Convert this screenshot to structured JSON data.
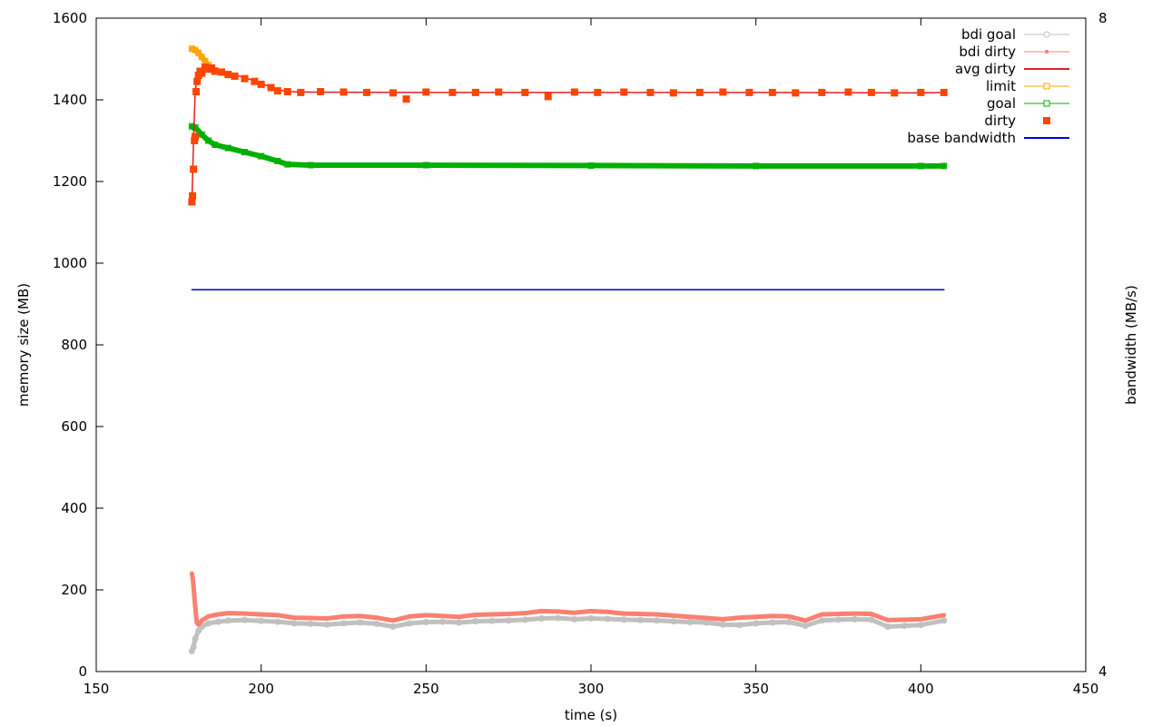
{
  "chart_data": {
    "type": "line",
    "title": "",
    "xlabel": "time (s)",
    "ylabel": "memory size (MB)",
    "y2label": "bandwidth (MB/s)",
    "xlim": [
      150,
      450
    ],
    "ylim": [
      0,
      1600
    ],
    "y2lim": [
      4,
      8
    ],
    "x_ticks": [
      "150",
      "200",
      "250",
      "300",
      "350",
      "400",
      "450"
    ],
    "y_ticks": [
      "0",
      "200",
      "400",
      "600",
      "800",
      "1000",
      "1200",
      "1400",
      "1600"
    ],
    "y2_ticks": [
      "4",
      "8"
    ],
    "grid": false,
    "legend_position": "top-right",
    "series": [
      {
        "name": "bdi goal",
        "color": "#c0c0c0",
        "style": "line-circle",
        "axis": "y1",
        "x": [
          179,
          179.5,
          180,
          181,
          182,
          184,
          187,
          190,
          195,
          200,
          205,
          210,
          215,
          220,
          225,
          230,
          235,
          240,
          245,
          250,
          255,
          260,
          265,
          270,
          275,
          280,
          285,
          290,
          295,
          300,
          305,
          310,
          315,
          320,
          325,
          330,
          335,
          340,
          345,
          350,
          355,
          360,
          365,
          370,
          375,
          380,
          385,
          390,
          395,
          400,
          407
        ],
        "y": [
          50,
          60,
          80,
          100,
          110,
          118,
          122,
          125,
          126,
          124,
          122,
          118,
          117,
          115,
          118,
          120,
          117,
          110,
          118,
          121,
          122,
          120,
          123,
          124,
          125,
          127,
          130,
          131,
          128,
          130,
          129,
          127,
          126,
          125,
          123,
          121,
          120,
          115,
          114,
          118,
          120,
          121,
          112,
          125,
          127,
          128,
          127,
          110,
          112,
          114,
          125
        ]
      },
      {
        "name": "bdi dirty",
        "color": "#fa8072",
        "style": "line-point",
        "axis": "y1",
        "x": [
          179,
          179.3,
          179.6,
          180,
          180.5,
          181,
          182,
          184,
          187,
          190,
          195,
          200,
          205,
          210,
          215,
          220,
          225,
          230,
          235,
          240,
          245,
          250,
          255,
          260,
          265,
          270,
          275,
          280,
          285,
          290,
          295,
          300,
          305,
          310,
          315,
          320,
          325,
          330,
          335,
          340,
          345,
          350,
          355,
          360,
          365,
          370,
          375,
          380,
          385,
          390,
          395,
          400,
          407
        ],
        "y": [
          240,
          225,
          200,
          160,
          120,
          115,
          125,
          135,
          140,
          143,
          142,
          140,
          138,
          132,
          131,
          130,
          135,
          136,
          132,
          125,
          135,
          138,
          136,
          134,
          139,
          140,
          141,
          143,
          148,
          147,
          144,
          148,
          146,
          142,
          141,
          140,
          137,
          134,
          131,
          128,
          132,
          134,
          136,
          135,
          125,
          140,
          141,
          142,
          141,
          126,
          127,
          128,
          138
        ]
      },
      {
        "name": "avg dirty",
        "color": "#e02020",
        "style": "line",
        "axis": "y1",
        "x": [
          179,
          179.5,
          180,
          180.5,
          181,
          182,
          183,
          185,
          190,
          195,
          200,
          205,
          208,
          215,
          250,
          300,
          350,
          400,
          407
        ],
        "y": [
          1150,
          1300,
          1420,
          1450,
          1465,
          1472,
          1475,
          1474,
          1465,
          1455,
          1440,
          1425,
          1420,
          1419,
          1418,
          1418,
          1418,
          1417,
          1418
        ]
      },
      {
        "name": "limit",
        "color": "#ffa500",
        "style": "line-square",
        "axis": "y1",
        "x": [
          179,
          180,
          181,
          182,
          183,
          184,
          185,
          186
        ],
        "y": [
          1525,
          1522,
          1515,
          1505,
          1495,
          1485,
          1478,
          1472
        ]
      },
      {
        "name": "goal",
        "color": "#00b000",
        "style": "line-square",
        "axis": "y1",
        "x": [
          179,
          180,
          182,
          184,
          186,
          190,
          195,
          200,
          205,
          208,
          215,
          250,
          300,
          350,
          400,
          407
        ],
        "y": [
          1335,
          1332,
          1315,
          1300,
          1290,
          1282,
          1272,
          1262,
          1250,
          1242,
          1240,
          1240,
          1239,
          1238,
          1238,
          1238
        ]
      },
      {
        "name": "dirty",
        "color": "#ff4500",
        "style": "square-points",
        "axis": "y1",
        "x": [
          179,
          179.2,
          179.5,
          179.8,
          180,
          180.3,
          180.6,
          181,
          181.5,
          182,
          183,
          184,
          185,
          186,
          188,
          190,
          192,
          195,
          198,
          200,
          203,
          205,
          208,
          212,
          218,
          225,
          232,
          240,
          244,
          250,
          258,
          265,
          272,
          280,
          287,
          295,
          302,
          310,
          318,
          325,
          333,
          340,
          348,
          355,
          362,
          370,
          378,
          385,
          392,
          400,
          407
        ],
        "y": [
          1150,
          1165,
          1230,
          1300,
          1310,
          1420,
          1445,
          1460,
          1470,
          1465,
          1480,
          1475,
          1478,
          1470,
          1468,
          1462,
          1458,
          1452,
          1445,
          1438,
          1430,
          1422,
          1420,
          1418,
          1420,
          1419,
          1418,
          1417,
          1402,
          1419,
          1418,
          1418,
          1419,
          1418,
          1408,
          1419,
          1418,
          1419,
          1418,
          1417,
          1418,
          1419,
          1418,
          1418,
          1417,
          1418,
          1419,
          1418,
          1417,
          1418,
          1418
        ]
      },
      {
        "name": "base bandwidth",
        "color": "#0000e0",
        "style": "line",
        "axis": "y1",
        "x": [
          179,
          407
        ],
        "y": [
          935,
          935
        ]
      }
    ]
  }
}
